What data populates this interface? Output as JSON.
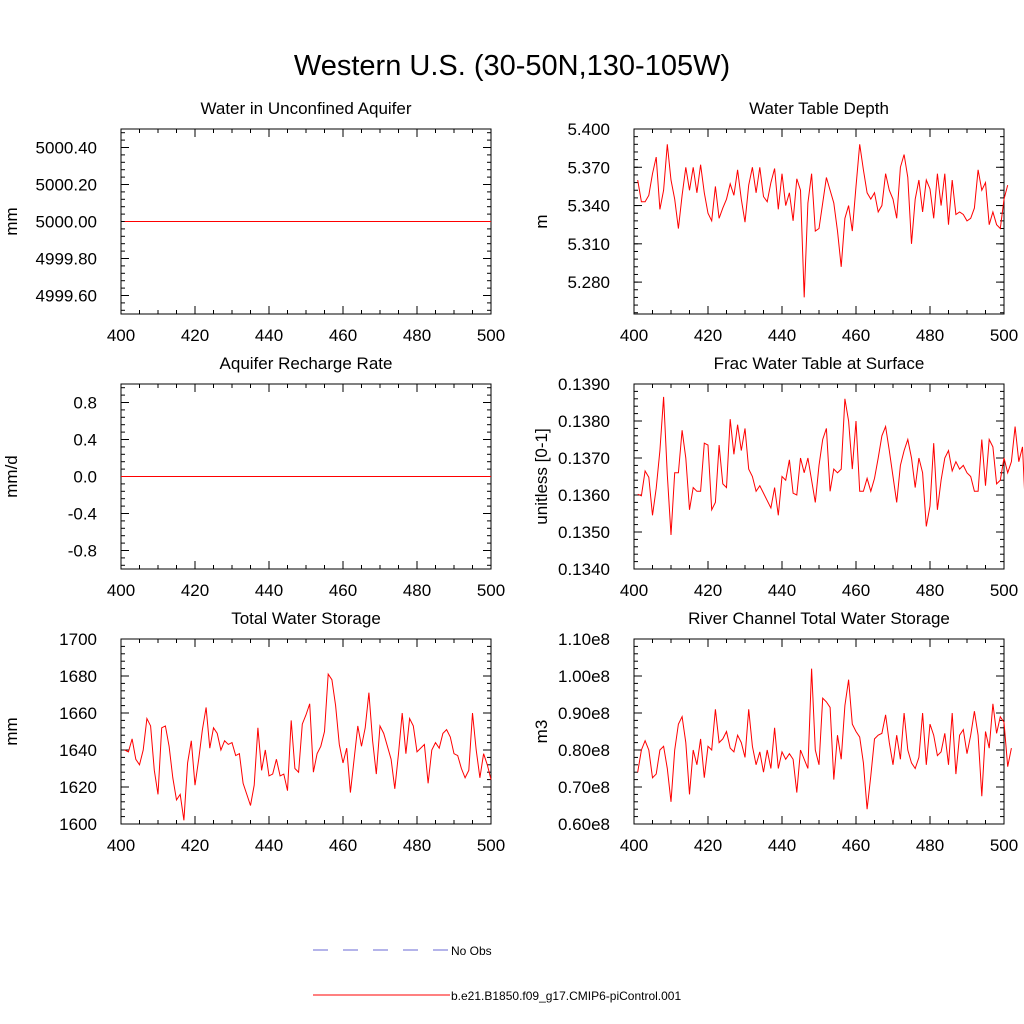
{
  "figure": {
    "title": "Western U.S. (30-50N,130-105W)",
    "legend": [
      {
        "label": "No Obs",
        "color": "#6a6ad6",
        "dashed": true
      },
      {
        "label": "b.e21.B1850.f09_g17.CMIP6-piControl.001",
        "color": "#ff0000",
        "dashed": false
      }
    ]
  },
  "chart_data": [
    {
      "type": "line",
      "title": "Water in Unconfined Aquifer",
      "ylabel": "mm",
      "xlim": [
        400,
        500
      ],
      "ylim": [
        4999.5,
        5000.5
      ],
      "xticks": [
        400,
        420,
        440,
        460,
        480,
        500
      ],
      "xtick_labels": [
        "400",
        "420",
        "440",
        "460",
        "480",
        "500"
      ],
      "yticks": [
        4999.6,
        4999.8,
        5000.0,
        5000.2,
        5000.4
      ],
      "ytick_labels": [
        "4999.60",
        "4999.80",
        "5000.00",
        "5000.20",
        "5000.40"
      ],
      "series": [
        {
          "color": "#ff0000",
          "x": [
            401,
            500
          ],
          "y": [
            5000.0,
            5000.0
          ]
        }
      ]
    },
    {
      "type": "line",
      "title": "Water Table Depth",
      "ylabel": "m",
      "xlim": [
        400,
        500
      ],
      "ylim": [
        5.255,
        5.4
      ],
      "xticks": [
        400,
        420,
        440,
        460,
        480,
        500
      ],
      "xtick_labels": [
        "400",
        "420",
        "440",
        "460",
        "480",
        "500"
      ],
      "yticks": [
        5.28,
        5.31,
        5.34,
        5.37,
        5.4
      ],
      "ytick_labels": [
        "5.280",
        "5.310",
        "5.340",
        "5.370",
        "5.400"
      ],
      "series": [
        {
          "color": "#ff0000",
          "x_start": 401,
          "x_step": 1,
          "y": [
            5.36,
            5.343,
            5.343,
            5.348,
            5.365,
            5.378,
            5.337,
            5.352,
            5.388,
            5.36,
            5.345,
            5.322,
            5.348,
            5.37,
            5.352,
            5.37,
            5.35,
            5.372,
            5.35,
            5.334,
            5.328,
            5.355,
            5.33,
            5.338,
            5.345,
            5.357,
            5.348,
            5.368,
            5.345,
            5.327,
            5.356,
            5.37,
            5.35,
            5.37,
            5.347,
            5.343,
            5.358,
            5.369,
            5.337,
            5.365,
            5.34,
            5.35,
            5.328,
            5.361,
            5.352,
            5.268,
            5.342,
            5.365,
            5.32,
            5.322,
            5.342,
            5.362,
            5.352,
            5.342,
            5.32,
            5.292,
            5.33,
            5.34,
            5.32,
            5.355,
            5.388,
            5.368,
            5.35,
            5.345,
            5.35,
            5.335,
            5.34,
            5.365,
            5.352,
            5.345,
            5.33,
            5.37,
            5.38,
            5.362,
            5.31,
            5.345,
            5.36,
            5.335,
            5.36,
            5.353,
            5.33,
            5.365,
            5.34,
            5.365,
            5.325,
            5.36,
            5.333,
            5.335,
            5.333,
            5.328,
            5.33,
            5.338,
            5.368,
            5.352,
            5.358,
            5.325,
            5.335,
            5.325,
            5.322,
            5.345,
            5.356
          ]
        }
      ]
    },
    {
      "type": "line",
      "title": "Aquifer Recharge Rate",
      "ylabel": "mm/d",
      "xlim": [
        400,
        500
      ],
      "ylim": [
        -1.0,
        1.0
      ],
      "xticks": [
        400,
        420,
        440,
        460,
        480,
        500
      ],
      "xtick_labels": [
        "400",
        "420",
        "440",
        "460",
        "480",
        "500"
      ],
      "yticks": [
        -0.8,
        -0.4,
        0.0,
        0.4,
        0.8
      ],
      "ytick_labels": [
        "-0.8",
        "-0.4",
        "0.0",
        "0.4",
        "0.8"
      ],
      "series": [
        {
          "color": "#ff0000",
          "x": [
            400,
            500
          ],
          "y": [
            0.0,
            0.0
          ]
        }
      ]
    },
    {
      "type": "line",
      "title": "Frac Water Table at Surface",
      "ylabel": "unitless [0-1]",
      "xlim": [
        400,
        500
      ],
      "ylim": [
        0.134,
        0.139
      ],
      "xticks": [
        400,
        420,
        440,
        460,
        480,
        500
      ],
      "xtick_labels": [
        "400",
        "420",
        "440",
        "460",
        "480",
        "500"
      ],
      "yticks": [
        0.134,
        0.135,
        0.136,
        0.137,
        0.138,
        0.139
      ],
      "ytick_labels": [
        "0.1340",
        "0.1350",
        "0.1360",
        "0.1370",
        "0.1380",
        "0.1390"
      ],
      "series": [
        {
          "color": "#ff0000",
          "x_start": 401,
          "x_step": 1,
          "y": [
            0.13602,
            0.13598,
            0.13665,
            0.13648,
            0.13545,
            0.13618,
            0.1372,
            0.13865,
            0.13655,
            0.13492,
            0.1366,
            0.1366,
            0.13775,
            0.137,
            0.1356,
            0.1362,
            0.1361,
            0.1361,
            0.1374,
            0.13735,
            0.1356,
            0.1358,
            0.13735,
            0.1363,
            0.1362,
            0.13805,
            0.1371,
            0.1379,
            0.1372,
            0.1378,
            0.1367,
            0.1365,
            0.1361,
            0.13625,
            0.13605,
            0.13585,
            0.13565,
            0.1362,
            0.13545,
            0.1365,
            0.1364,
            0.13695,
            0.13605,
            0.136,
            0.137,
            0.1366,
            0.137,
            0.1364,
            0.1358,
            0.1368,
            0.1375,
            0.1378,
            0.1361,
            0.1367,
            0.1366,
            0.1367,
            0.1386,
            0.138,
            0.1367,
            0.138,
            0.1361,
            0.1361,
            0.13645,
            0.1361,
            0.13645,
            0.137,
            0.1376,
            0.13785,
            0.1372,
            0.1365,
            0.1358,
            0.1368,
            0.1372,
            0.1375,
            0.137,
            0.1362,
            0.137,
            0.1366,
            0.13515,
            0.1357,
            0.1374,
            0.1356,
            0.1364,
            0.137,
            0.1372,
            0.13665,
            0.1369,
            0.1367,
            0.1368,
            0.1366,
            0.1365,
            0.1361,
            0.1361,
            0.1375,
            0.13625,
            0.1375,
            0.1373,
            0.1363,
            0.1364,
            0.137,
            0.1366,
            0.1369,
            0.13785,
            0.1369,
            0.1373,
            0.13515,
            0.136
          ]
        }
      ]
    },
    {
      "type": "line",
      "title": "Total Water Storage",
      "ylabel": "mm",
      "xlim": [
        400,
        500
      ],
      "ylim": [
        1600,
        1700
      ],
      "xticks": [
        400,
        420,
        440,
        460,
        480,
        500
      ],
      "xtick_labels": [
        "400",
        "420",
        "440",
        "460",
        "480",
        "500"
      ],
      "yticks": [
        1600,
        1620,
        1640,
        1660,
        1680,
        1700
      ],
      "ytick_labels": [
        "1600",
        "1620",
        "1640",
        "1660",
        "1680",
        "1700"
      ],
      "series": [
        {
          "color": "#ff0000",
          "x_start": 401,
          "x_step": 1,
          "y": [
            1640,
            1639,
            1646,
            1635,
            1632,
            1640,
            1657,
            1653,
            1629,
            1616,
            1652,
            1653,
            1642,
            1625,
            1613,
            1616,
            1602,
            1633,
            1645,
            1621,
            1635,
            1651,
            1663,
            1641,
            1652,
            1649,
            1640,
            1645,
            1643,
            1644,
            1637,
            1638,
            1622,
            1616,
            1610,
            1621,
            1652,
            1629,
            1640,
            1626,
            1627,
            1635,
            1626,
            1627,
            1618,
            1656,
            1630,
            1628,
            1654,
            1659,
            1665,
            1628,
            1638,
            1642,
            1650,
            1681,
            1678,
            1664,
            1643,
            1633,
            1641,
            1617,
            1635,
            1653,
            1642,
            1652,
            1671,
            1645,
            1627,
            1653,
            1649,
            1642,
            1635,
            1619,
            1638,
            1660,
            1638,
            1657,
            1653,
            1639,
            1641,
            1643,
            1622,
            1640,
            1644,
            1641,
            1649,
            1651,
            1647,
            1638,
            1637,
            1630,
            1625,
            1629,
            1660,
            1640,
            1625,
            1638,
            1632,
            1624
          ]
        }
      ]
    },
    {
      "type": "line",
      "title": "River Channel Total Water Storage",
      "ylabel": "m3",
      "xlim": [
        400,
        500
      ],
      "ylim": [
        60000000,
        110000000
      ],
      "xticks": [
        400,
        420,
        440,
        460,
        480,
        500
      ],
      "xtick_labels": [
        "400",
        "420",
        "440",
        "460",
        "480",
        "500"
      ],
      "yticks": [
        60000000,
        70000000,
        80000000,
        90000000,
        100000000,
        110000000
      ],
      "ytick_labels": [
        "0.60e8",
        "0.70e8",
        "0.80e8",
        "0.90e8",
        "1.00e8",
        "1.10e8"
      ],
      "series": [
        {
          "color": "#ff0000",
          "x_start": 401,
          "x_step": 1,
          "y": [
            74000000,
            80000000,
            82500000,
            80000000,
            72500000,
            73500000,
            80000000,
            81000000,
            75000000,
            66000000,
            80000000,
            87000000,
            89000000,
            82000000,
            68000000,
            80000000,
            76000000,
            83000000,
            72500000,
            81000000,
            80000000,
            91000000,
            82000000,
            83000000,
            85000000,
            80500000,
            79500000,
            84000000,
            82000000,
            78000000,
            91000000,
            81000000,
            76000000,
            79500000,
            74000000,
            80000000,
            75000000,
            86000000,
            75000000,
            79500000,
            77500000,
            79000000,
            77500000,
            68500000,
            80000000,
            77500000,
            75000000,
            102000000,
            80000000,
            76000000,
            94000000,
            93000000,
            91500000,
            72000000,
            84000000,
            77500000,
            92000000,
            99000000,
            87000000,
            85000000,
            83500000,
            76500000,
            64000000,
            73000000,
            83000000,
            84000000,
            84500000,
            89500000,
            82000000,
            76000000,
            84000000,
            77500000,
            90000000,
            80000000,
            76500000,
            75000000,
            78000000,
            90000000,
            76000000,
            87000000,
            84000000,
            78500000,
            79500000,
            84500000,
            76000000,
            90000000,
            73500000,
            84000000,
            85500000,
            79000000,
            84000000,
            90500000,
            84000000,
            67500000,
            85000000,
            80500000,
            92500000,
            84500000,
            89000000,
            87500000,
            75500000,
            80500000
          ]
        }
      ]
    }
  ]
}
